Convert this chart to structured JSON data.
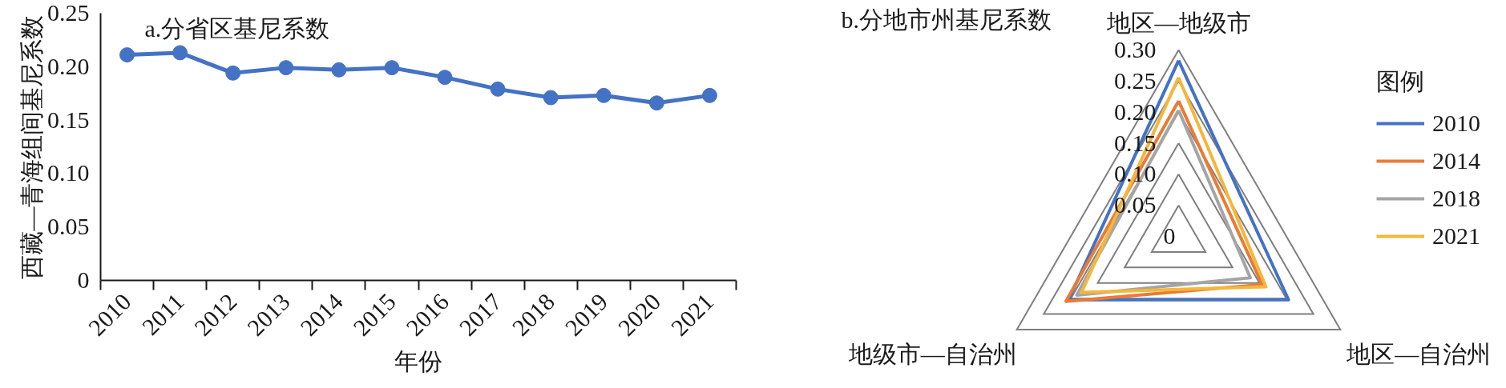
{
  "chart_data": [
    {
      "type": "line",
      "title": "a.分省区基尼系数",
      "xlabel": "年份",
      "ylabel": "西藏—青海组间基尼系数",
      "categories": [
        "2010",
        "2011",
        "2012",
        "2013",
        "2014",
        "2015",
        "2016",
        "2017",
        "2018",
        "2019",
        "2020",
        "2021"
      ],
      "series": [
        {
          "color": "#4472c4",
          "values": [
            0.211,
            0.213,
            0.194,
            0.199,
            0.197,
            0.199,
            0.19,
            0.179,
            0.171,
            0.173,
            0.166,
            0.173
          ]
        }
      ],
      "ylim": [
        0,
        0.25
      ],
      "yticks": [
        0,
        0.05,
        {
          "value": 0.1,
          "label": "0.10"
        },
        0.15,
        {
          "value": 0.2,
          "label": "0.20"
        },
        0.25
      ],
      "marker": "circle",
      "line_style": "solid"
    },
    {
      "type": "radar",
      "title": "b.分地市州基尼系数",
      "legend_title": "图例",
      "categories": [
        "地区—地级市",
        "地区—自治州",
        "地级市—自治州"
      ],
      "series": [
        {
          "name": "2010",
          "color": "#4472c4",
          "values": [
            0.283,
            0.204,
            0.204
          ]
        },
        {
          "name": "2014",
          "color": "#e97b37",
          "values": [
            0.218,
            0.155,
            0.209
          ]
        },
        {
          "name": "2018",
          "color": "#a5a5a5",
          "values": [
            0.203,
            0.133,
            0.189
          ]
        },
        {
          "name": "2021",
          "color": "#f4b73b",
          "values": [
            0.256,
            0.162,
            0.18
          ]
        }
      ],
      "ylim": [
        0,
        0.3
      ],
      "yticks": [
        0,
        0.05,
        {
          "value": 0.1,
          "label": "0.10"
        },
        0.15,
        {
          "value": 0.2,
          "label": "0.20"
        },
        0.25,
        {
          "value": 0.3,
          "label": "0.30"
        }
      ],
      "grid": true,
      "legend": "right",
      "line_style": "solid"
    }
  ]
}
